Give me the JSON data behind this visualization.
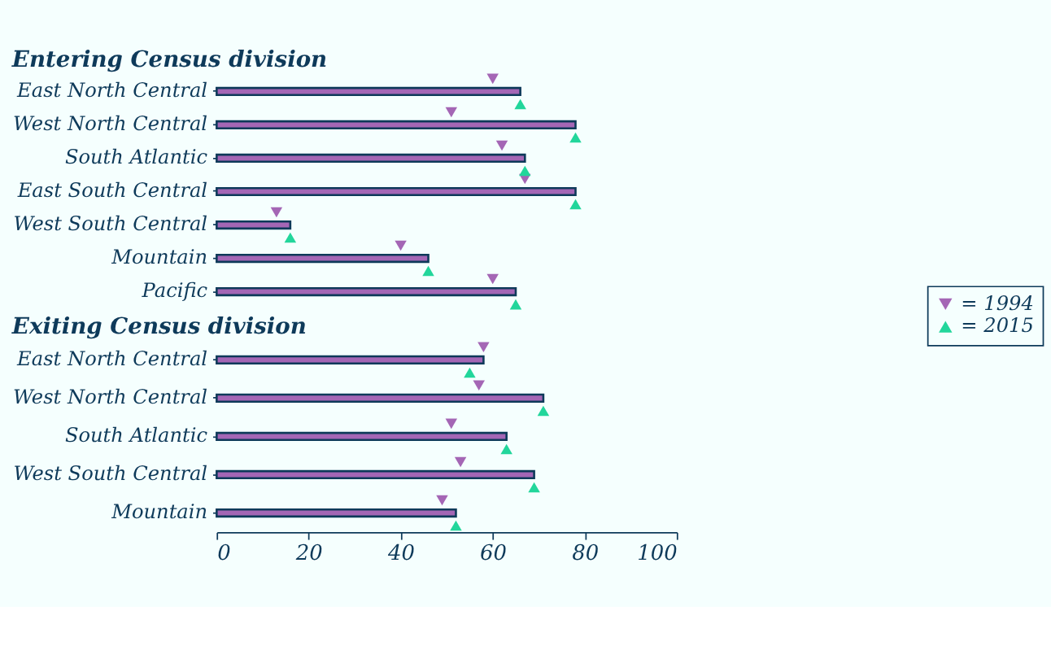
{
  "chart_data": [
    {
      "type": "bar",
      "orientation": "horizontal",
      "title": "Entering Census division",
      "categories": [
        "East North Central",
        "West North Central",
        "South Atlantic",
        "East South Central",
        "West South Central",
        "Mountain",
        "Pacific"
      ],
      "xlim": [
        0,
        100
      ],
      "xticks": [
        0,
        20,
        40,
        60,
        80,
        100
      ],
      "tick_labels": "y",
      "legend": "bottom right",
      "series": [
        {
          "type": "bar",
          "color": "#a466b5",
          "values": [
            66,
            78,
            67,
            78,
            16,
            46,
            65
          ]
        },
        {
          "type": "scatter",
          "marker": "triangle",
          "name": "= 1994",
          "color": "#a466b5",
          "values": [
            60,
            51,
            62,
            67,
            13,
            40,
            60
          ]
        },
        {
          "type": "scatter",
          "marker": "triangle",
          "name": "= 2015",
          "color": "#22d69b",
          "values": [
            66,
            78,
            67,
            78,
            16,
            46,
            65
          ]
        }
      ]
    },
    {
      "type": "bar",
      "orientation": "horizontal",
      "title": "Exiting Census division",
      "categories": [
        "East North Central",
        "West North Central",
        "South Atlantic",
        "West South Central",
        "Mountain"
      ],
      "xlim": [
        0,
        100
      ],
      "xticks": [
        0,
        20,
        40,
        60,
        80,
        100
      ],
      "series": [
        {
          "type": "bar",
          "color": "#a466b5",
          "values": [
            58,
            71,
            63,
            69,
            52
          ]
        },
        {
          "type": "scatter",
          "marker": "triangle",
          "name": "= 1994",
          "color": "#a466b5",
          "values": [
            58,
            57,
            51,
            53,
            49
          ]
        },
        {
          "type": "scatter",
          "marker": "triangle",
          "name": "= 2015",
          "color": "#22d69b",
          "values": [
            55,
            71,
            63,
            69,
            52
          ]
        }
      ]
    }
  ]
}
